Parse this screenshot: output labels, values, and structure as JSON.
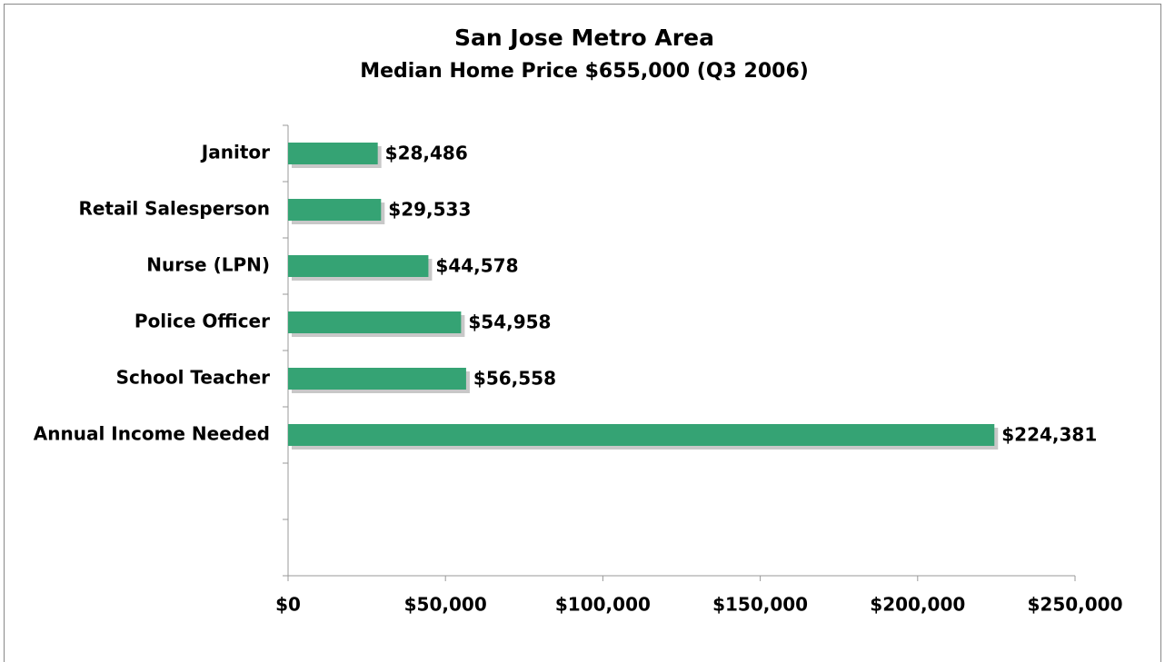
{
  "chart_data": {
    "type": "bar",
    "orientation": "horizontal",
    "title": "San Jose Metro Area",
    "subtitle": "Median Home Price $655,000 (Q3 2006)",
    "categories": [
      "Janitor",
      "Retail Salesperson",
      "Nurse (LPN)",
      "Police Officer",
      "School Teacher",
      "Annual Income Needed",
      null,
      null
    ],
    "values": [
      28486,
      29533,
      44578,
      54958,
      56558,
      224381,
      null,
      null
    ],
    "value_labels": [
      "$28,486",
      "$29,533",
      "$44,578",
      "$54,958",
      "$56,558",
      "$224,381",
      null,
      null
    ],
    "color": "#35a374",
    "xlim": [
      0,
      250000
    ],
    "xticks": [
      {
        "value": 0,
        "label": "$0"
      },
      {
        "value": 50000,
        "label": "$50,000"
      },
      {
        "value": 100000,
        "label": "$100,000"
      },
      {
        "value": 150000,
        "label": "$150,000"
      },
      {
        "value": 200000,
        "label": "$200,000"
      },
      {
        "value": 250000,
        "label": "$250,000"
      }
    ],
    "grid": false
  }
}
